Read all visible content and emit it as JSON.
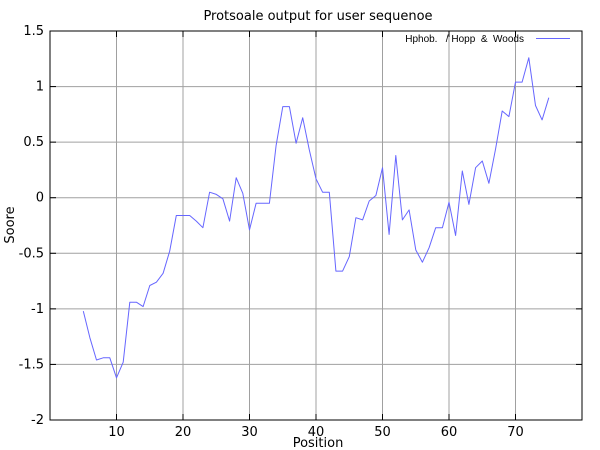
{
  "chart_data": {
    "type": "line",
    "title": "Protsoale output for user sequenoe",
    "xlabel": "Position",
    "ylabel": "Soore",
    "xlim": [
      0,
      80
    ],
    "ylim": [
      -2,
      1.5
    ],
    "xticks": [
      10,
      20,
      30,
      40,
      50,
      60,
      70
    ],
    "yticks": [
      -2,
      -1.5,
      -1,
      -0.5,
      0,
      0.5,
      1,
      1.5
    ],
    "xtick_labels": [
      "10",
      "20",
      "30",
      "40",
      "50",
      "60",
      "70"
    ],
    "ytick_labels": [
      "-2",
      "-1.5",
      "-1",
      "-0.5",
      "0",
      "0.5",
      "1",
      "1.5"
    ],
    "grid": true,
    "legend_position": "top-right",
    "series": [
      {
        "name": "Hphob.   / Hopp  &  Woods",
        "color": "#6666ff",
        "x": [
          5,
          6,
          7,
          8,
          9,
          10,
          11,
          12,
          13,
          14,
          15,
          16,
          17,
          18,
          19,
          20,
          21,
          22,
          23,
          24,
          25,
          26,
          27,
          28,
          29,
          30,
          31,
          32,
          33,
          34,
          35,
          36,
          37,
          38,
          39,
          40,
          41,
          42,
          43,
          44,
          45,
          46,
          47,
          48,
          49,
          50,
          51,
          52,
          53,
          54,
          55,
          56,
          57,
          58,
          59,
          60,
          61,
          62,
          63,
          64,
          65,
          66,
          67,
          68,
          69,
          70,
          71,
          72,
          73,
          74,
          75
        ],
        "y": [
          -1.02,
          -1.26,
          -1.46,
          -1.44,
          -1.44,
          -1.62,
          -1.48,
          -0.94,
          -0.94,
          -0.98,
          -0.79,
          -0.76,
          -0.68,
          -0.48,
          -0.16,
          -0.16,
          -0.16,
          -0.21,
          -0.27,
          0.05,
          0.03,
          -0.01,
          -0.21,
          0.18,
          0.04,
          -0.29,
          -0.05,
          -0.05,
          -0.05,
          0.47,
          0.82,
          0.82,
          0.49,
          0.72,
          0.43,
          0.17,
          0.05,
          0.05,
          -0.66,
          -0.66,
          -0.53,
          -0.18,
          -0.2,
          -0.03,
          0.02,
          0.27,
          -0.33,
          0.38,
          -0.2,
          -0.11,
          -0.47,
          -0.58,
          -0.45,
          -0.27,
          -0.27,
          -0.04,
          -0.34,
          0.24,
          -0.06,
          0.27,
          0.33,
          0.13,
          0.44,
          0.78,
          0.73,
          1.04,
          1.04,
          1.26,
          0.83,
          0.7,
          0.9
        ]
      }
    ]
  }
}
